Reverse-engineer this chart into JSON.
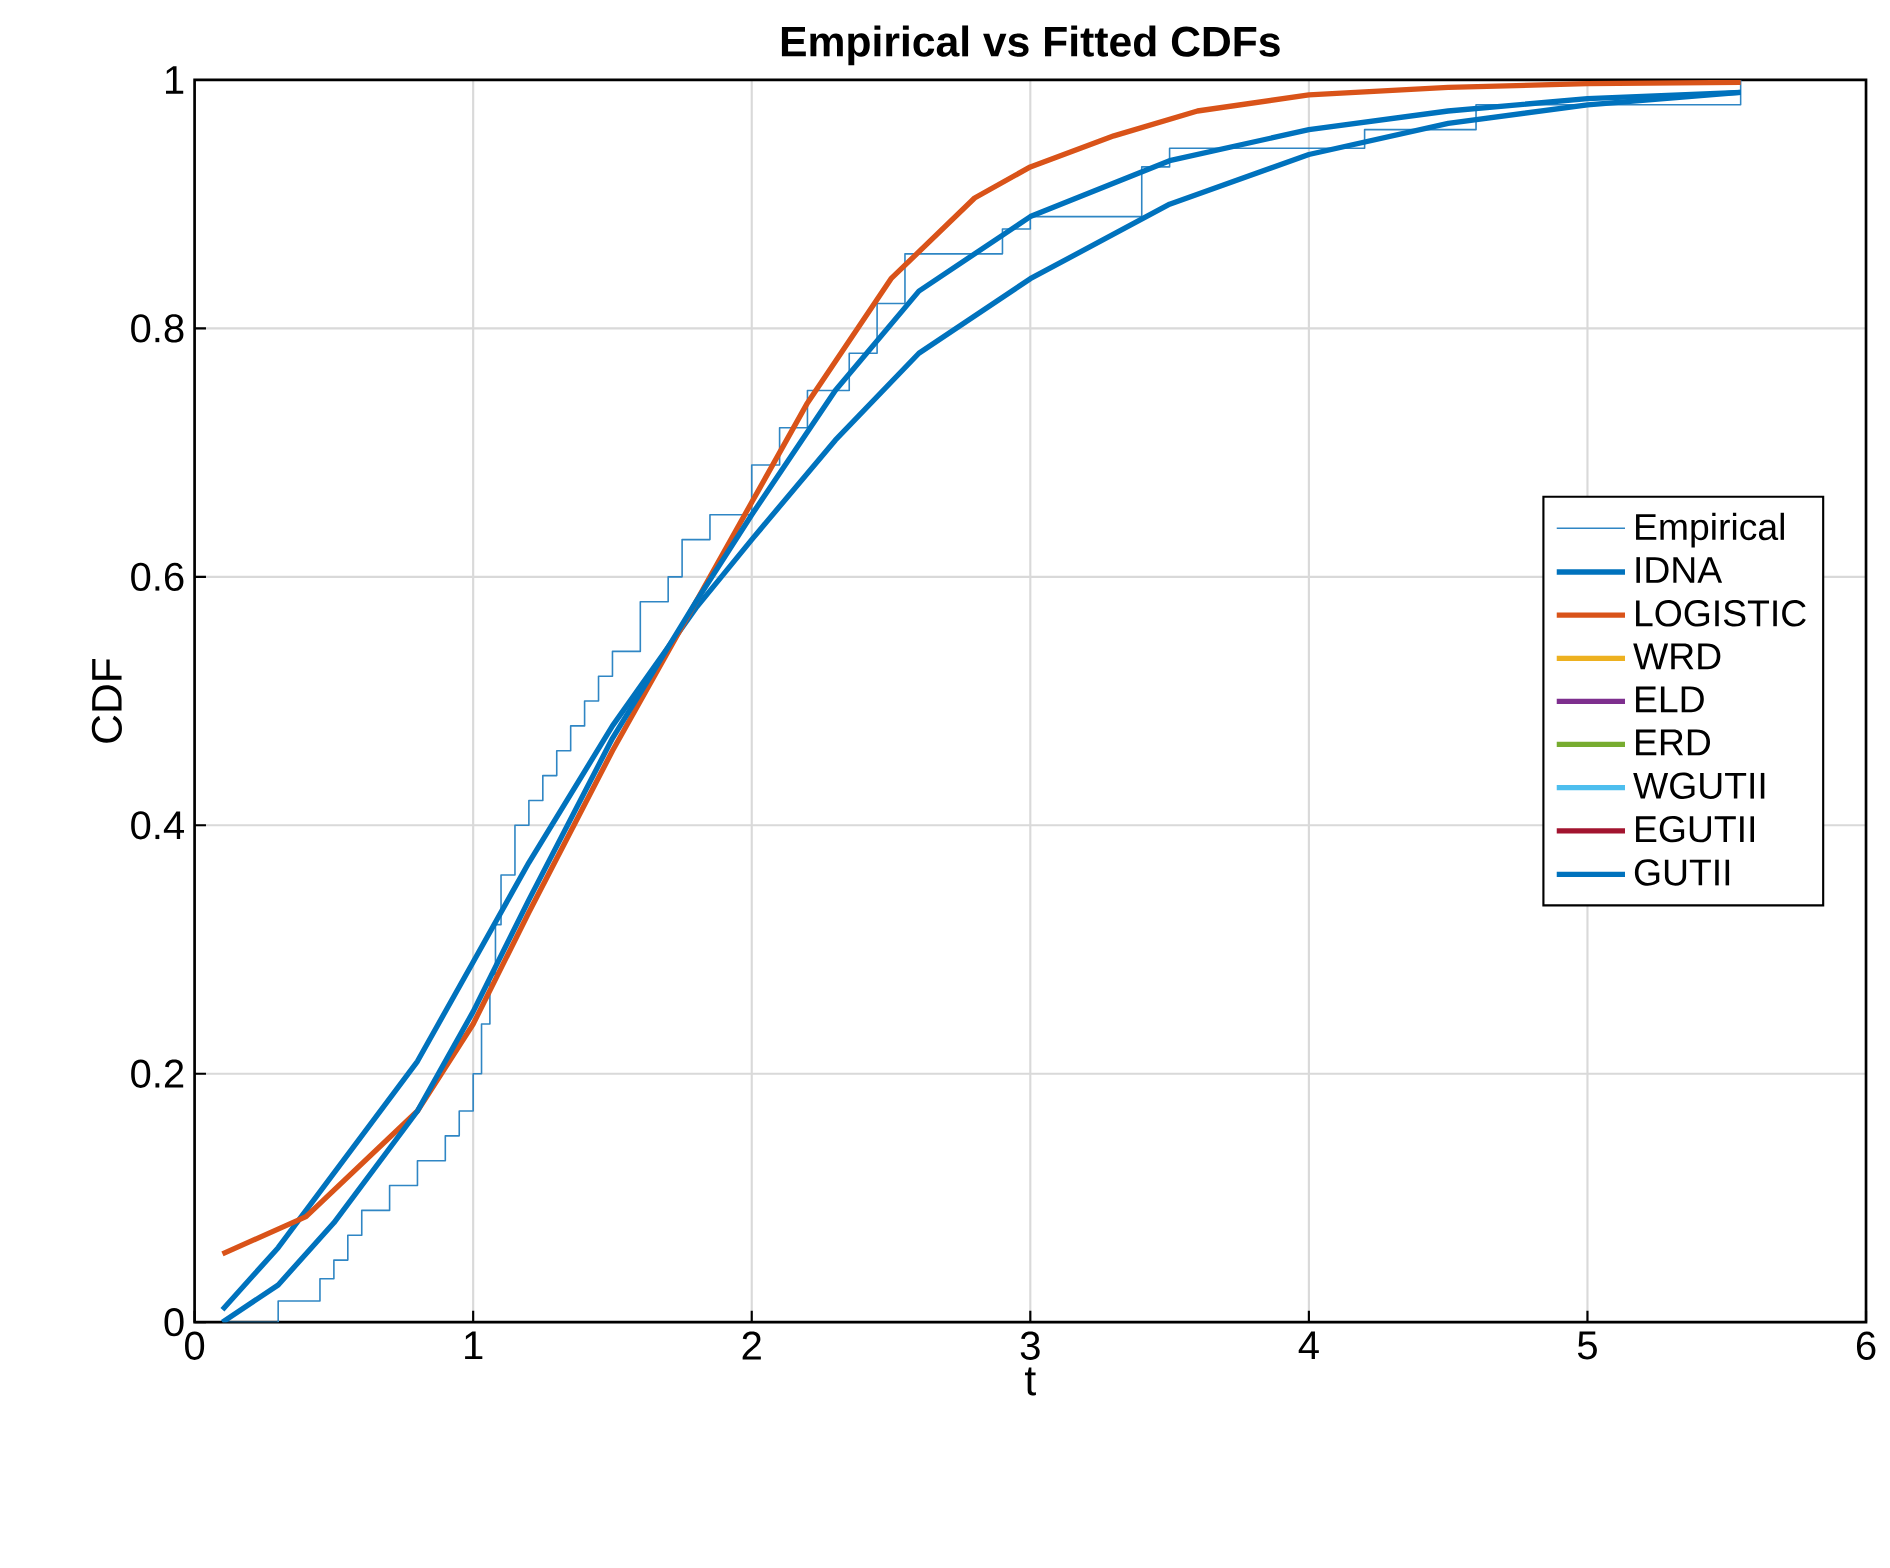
{
  "chart_data": {
    "type": "line",
    "title": "Empirical vs Fitted CDFs",
    "xlabel": "t",
    "ylabel": "CDF",
    "xlim": [
      0,
      6
    ],
    "ylim": [
      0,
      1
    ],
    "xticks": [
      0,
      1,
      2,
      3,
      4,
      5,
      6
    ],
    "yticks": [
      0,
      0.2,
      0.4,
      0.6,
      0.8,
      1
    ],
    "grid": true,
    "legend": "right",
    "series": [
      {
        "name": "Empirical",
        "type": "step",
        "color": "#2f86c4",
        "x": [
          0.1,
          0.3,
          0.45,
          0.5,
          0.55,
          0.6,
          0.7,
          0.8,
          0.9,
          0.95,
          1.0,
          1.03,
          1.06,
          1.08,
          1.1,
          1.15,
          1.2,
          1.25,
          1.3,
          1.35,
          1.4,
          1.45,
          1.5,
          1.6,
          1.7,
          1.75,
          1.85,
          2.0,
          2.1,
          2.2,
          2.35,
          2.45,
          2.55,
          2.9,
          3.0,
          3.4,
          3.5,
          4.2,
          4.6,
          5.55
        ],
        "values": [
          0.0,
          0.017,
          0.035,
          0.05,
          0.07,
          0.09,
          0.11,
          0.13,
          0.15,
          0.17,
          0.2,
          0.24,
          0.28,
          0.32,
          0.36,
          0.4,
          0.42,
          0.44,
          0.46,
          0.48,
          0.5,
          0.52,
          0.54,
          0.58,
          0.6,
          0.63,
          0.65,
          0.69,
          0.72,
          0.75,
          0.78,
          0.82,
          0.86,
          0.88,
          0.89,
          0.93,
          0.945,
          0.96,
          0.98,
          1.0
        ]
      },
      {
        "name": "IDNA",
        "color": "#0072bd",
        "x": [
          0.1,
          0.3,
          0.5,
          0.8,
          1.0,
          1.2,
          1.5,
          1.8,
          2.0,
          2.3,
          2.6,
          3.0,
          3.5,
          4.0,
          4.5,
          5.0,
          5.55
        ],
        "values": [
          0.01,
          0.06,
          0.12,
          0.21,
          0.29,
          0.37,
          0.48,
          0.575,
          0.63,
          0.71,
          0.78,
          0.84,
          0.9,
          0.94,
          0.965,
          0.98,
          0.99
        ]
      },
      {
        "name": "LOGISTIC",
        "color": "#d95319",
        "x": [
          0.1,
          0.4,
          0.8,
          1.0,
          1.2,
          1.5,
          1.8,
          2.0,
          2.2,
          2.5,
          2.8,
          3.0,
          3.3,
          3.6,
          4.0,
          4.5,
          5.0,
          5.55
        ],
        "values": [
          0.055,
          0.085,
          0.17,
          0.24,
          0.33,
          0.46,
          0.58,
          0.66,
          0.74,
          0.84,
          0.905,
          0.93,
          0.955,
          0.975,
          0.988,
          0.994,
          0.997,
          0.998
        ]
      },
      {
        "name": "WRD",
        "color": "#edb120"
      },
      {
        "name": "ELD",
        "color": "#7e2f8e"
      },
      {
        "name": "ERD",
        "color": "#77ac30"
      },
      {
        "name": "WGUTII",
        "color": "#4dbeee"
      },
      {
        "name": "EGUTII",
        "color": "#a2142f"
      },
      {
        "name": "GUTII",
        "color": "#0072bd",
        "x": [
          0.1,
          0.3,
          0.5,
          0.8,
          1.0,
          1.2,
          1.5,
          1.8,
          2.0,
          2.3,
          2.6,
          3.0,
          3.5,
          4.0,
          4.5,
          5.0,
          5.55
        ],
        "values": [
          0.0,
          0.03,
          0.08,
          0.17,
          0.25,
          0.34,
          0.47,
          0.58,
          0.65,
          0.75,
          0.83,
          0.89,
          0.935,
          0.96,
          0.975,
          0.985,
          0.99
        ]
      }
    ]
  }
}
